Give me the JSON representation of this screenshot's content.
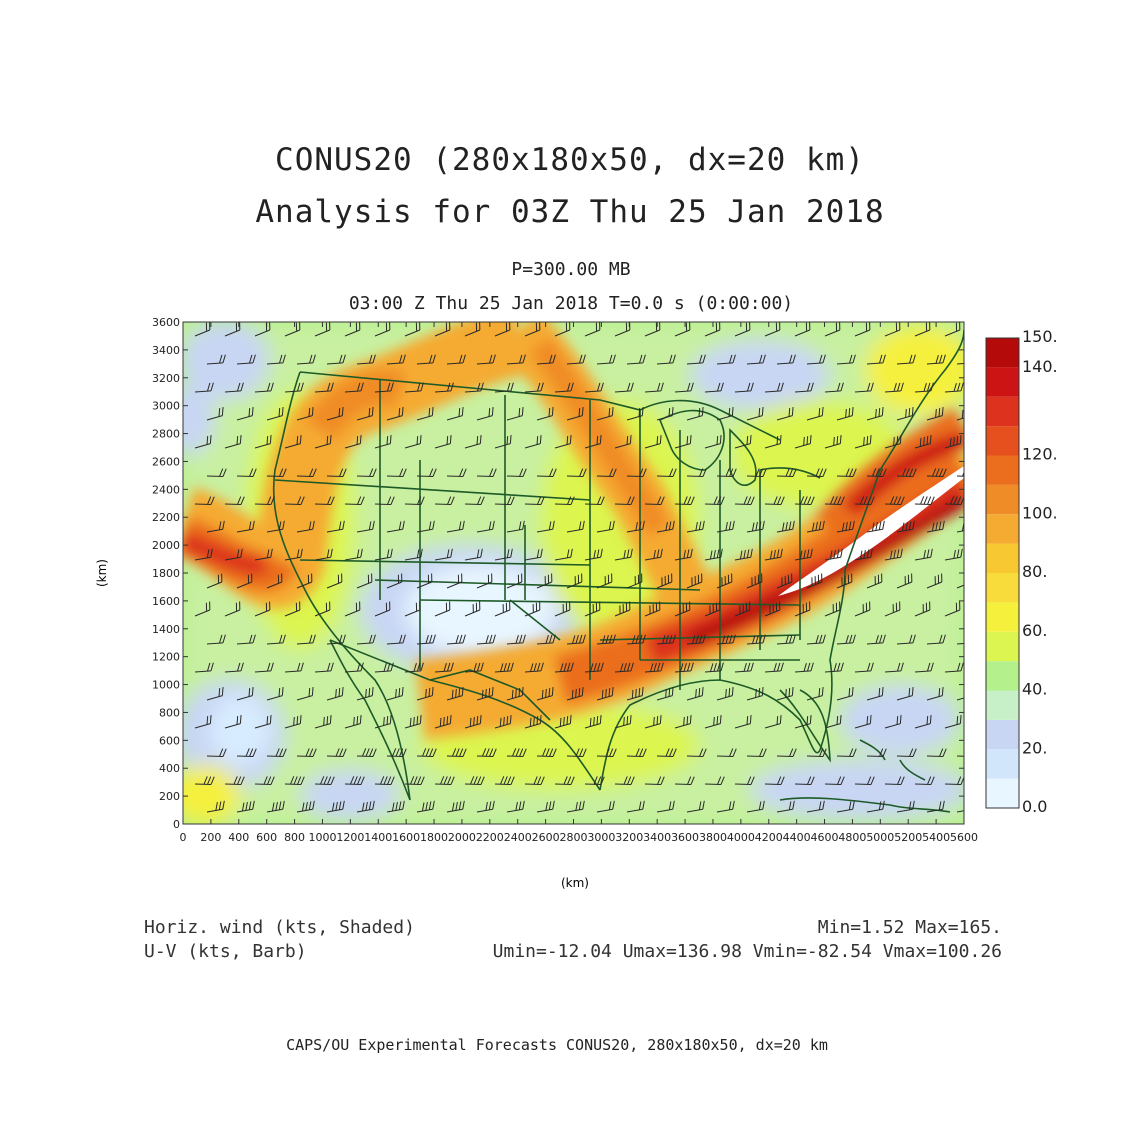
{
  "title": {
    "line1": "CONUS20 (280x180x50, dx=20 km)",
    "line2": "Analysis for 03Z Thu 25 Jan 2018"
  },
  "subtitle": {
    "level": "P=300.00 MB",
    "time": "03:00 Z Thu 25 Jan 2018   T=0.0 s (0:00:00)"
  },
  "axes": {
    "xlabel": "(km)",
    "ylabel": "(km)",
    "x_ticks": [
      "0",
      "200",
      "400",
      "600",
      "800",
      "1000",
      "1200",
      "1400",
      "1600",
      "1800",
      "2000",
      "2200",
      "2400",
      "2600",
      "2800",
      "3000",
      "3200",
      "3400",
      "3600",
      "3800",
      "4000",
      "4200",
      "4400",
      "4600",
      "4800",
      "5000",
      "5200",
      "5400",
      "5600"
    ],
    "y_ticks": [
      "0",
      "200",
      "400",
      "600",
      "800",
      "1000",
      "1200",
      "1400",
      "1600",
      "1800",
      "2000",
      "2200",
      "2400",
      "2600",
      "2800",
      "3000",
      "3200",
      "3400",
      "3600"
    ],
    "x_range": [
      0,
      5600
    ],
    "y_range": [
      0,
      3600
    ]
  },
  "colorbar": {
    "labels": [
      "0.0",
      "20.",
      "40.",
      "60.",
      "80.",
      "100.",
      "120.",
      "140.",
      "150."
    ],
    "colors": [
      "#e8f6ff",
      "#d2e6fb",
      "#c8d6f4",
      "#c8f0c8",
      "#b4f08c",
      "#dcf550",
      "#f5f03c",
      "#f8dc3c",
      "#f8c832",
      "#f5aa32",
      "#f08c28",
      "#eb6e1e",
      "#e6501e",
      "#dc321e",
      "#cd1414",
      "#b40a0a"
    ]
  },
  "footer": {
    "left1": "Horiz. wind (kts, Shaded)",
    "left2": "U-V (kts, Barb)",
    "right1": "Min=1.52 Max=165.",
    "right2": "Umin=-12.04 Umax=136.98 Vmin=-82.54 Vmax=100.26"
  },
  "bottom_credit": "CAPS/OU Experimental Forecasts  CONUS20, 280x180x50, dx=20 km",
  "map": {
    "field": "300 mb horizontal wind speed (kts)",
    "jet_max_region": "over the Carolinas / mid-Atlantic coast"
  }
}
